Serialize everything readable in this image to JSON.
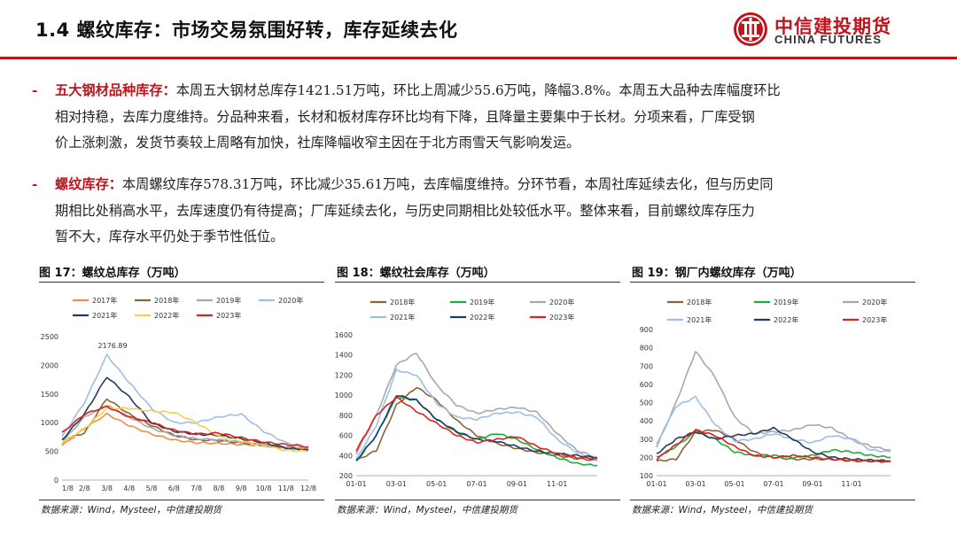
{
  "header": {
    "title": "1.4 螺纹库存：市场交易氛围好转，库存延续去化",
    "logo_cn": "中信建投期货",
    "logo_en": "CHINA FUTURES",
    "brand_color": "#c0141c"
  },
  "paragraphs": [
    {
      "bullet": "-",
      "keyword": "五大钢材品种库存：",
      "lines": [
        "本周五大钢材总库存1421.51万吨，环比上周减少55.6万吨，降幅3.8%。本周五大品种去库幅度环比",
        "相对持稳，去库力度维持。分品种来看，长材和板材库存环比均有下降，且降量主要集中于长材。分项来看，厂库受钢",
        "价上涨刺激，发货节奏较上周略有加快，社库降幅收窄主因在于北方雨雪天气影响发运。"
      ]
    },
    {
      "bullet": "-",
      "keyword": "螺纹库存：",
      "lines": [
        "本周螺纹库存578.31万吨，环比减少35.61万吨，去库幅度维持。分环节看，本周社库延续去化，但与历史同",
        "期相比处稍高水平，去库速度仍有待提高；厂库延续去化，与历史同期相比处较低水平。整体来看，目前螺纹库存压力",
        "暂不大，库存水平仍处于季节性低位。"
      ]
    }
  ],
  "figures": [
    {
      "title": "图 17：螺纹总库存（万吨）",
      "source": "数据来源：Wind，Mysteel，中信建投期货",
      "chart_data": {
        "type": "line",
        "title": "螺纹总库存（万吨）",
        "x_ticks": [
          "1/8",
          "2/8",
          "3/8",
          "4/8",
          "5/8",
          "6/8",
          "7/8",
          "8/8",
          "9/8",
          "10/8",
          "11/8",
          "12/8"
        ],
        "ylim": [
          0,
          2500
        ],
        "y_ticks": [
          "0",
          "500",
          "1000",
          "1500",
          "2000",
          "2500"
        ],
        "annotation": "2176.89",
        "series": [
          {
            "name": "2017年",
            "color": "#f08c4a",
            "values": [
              600,
              900,
              1150,
              950,
              800,
              700,
              650,
              640,
              620,
              600,
              560,
              520
            ]
          },
          {
            "name": "2018年",
            "color": "#8b6236",
            "values": [
              700,
              820,
              1420,
              1150,
              950,
              780,
              700,
              690,
              650,
              610,
              560,
              540
            ]
          },
          {
            "name": "2019年",
            "color": "#a8a8a8",
            "values": [
              650,
              1100,
              1300,
              1100,
              900,
              780,
              720,
              700,
              660,
              620,
              580,
              560
            ]
          },
          {
            "name": "2020年",
            "color": "#9dbfe6",
            "values": [
              750,
              1350,
              2176.89,
              1700,
              1250,
              1000,
              1000,
              1100,
              1150,
              850,
              650,
              580
            ]
          },
          {
            "name": "2021年",
            "color": "#1f3b66",
            "values": [
              700,
              1150,
              1800,
              1450,
              1000,
              850,
              800,
              780,
              720,
              650,
              560,
              520
            ]
          },
          {
            "name": "2022年",
            "color": "#f7d04a",
            "values": [
              650,
              900,
              1250,
              1250,
              1200,
              1180,
              1000,
              760,
              680,
              600,
              520,
              500
            ]
          },
          {
            "name": "2023年",
            "color": "#e0201c",
            "values": [
              820,
              1150,
              1280,
              1100,
              1000,
              870,
              800,
              820,
              740,
              660,
              620,
              578.31
            ]
          }
        ]
      }
    },
    {
      "title": "图 18：螺纹社会库存（万吨）",
      "source": "数据来源：Wind，Mysteel，中信建投期货",
      "chart_data": {
        "type": "line",
        "title": "螺纹社会库存（万吨）",
        "x_ticks": [
          "01-01",
          "03-01",
          "05-01",
          "07-01",
          "09-01",
          "11-01"
        ],
        "ylim": [
          200,
          1600
        ],
        "y_ticks": [
          "200",
          "400",
          "600",
          "800",
          "1000",
          "1200",
          "1400",
          "1600"
        ],
        "series": [
          {
            "name": "2018年",
            "color": "#8b6236",
            "values": [
              350,
              450,
              900,
              1080,
              950,
              750,
              600,
              520,
              470,
              430,
              400,
              370,
              350
            ]
          },
          {
            "name": "2019年",
            "color": "#1faa3c",
            "values": [
              340,
              600,
              980,
              950,
              760,
              630,
              560,
              620,
              560,
              460,
              380,
              320,
              300
            ]
          },
          {
            "name": "2020年",
            "color": "#a8a8a8",
            "values": [
              420,
              800,
              1300,
              1420,
              1100,
              900,
              820,
              860,
              880,
              830,
              620,
              450,
              380
            ]
          },
          {
            "name": "2021年",
            "color": "#9dbfe6",
            "values": [
              360,
              700,
              1250,
              1200,
              920,
              780,
              760,
              820,
              830,
              780,
              560,
              430,
              350
            ]
          },
          {
            "name": "2022年",
            "color": "#1f3b66",
            "values": [
              350,
              600,
              1000,
              950,
              760,
              640,
              560,
              540,
              490,
              440,
              420,
              400,
              380
            ]
          },
          {
            "name": "2023年",
            "color": "#e0201c",
            "values": [
              450,
              800,
              980,
              840,
              720,
              600,
              530,
              560,
              590,
              490,
              420,
              380,
              370
            ]
          }
        ]
      }
    },
    {
      "title": "图 19：钢厂内螺纹库存（万吨）",
      "source": "数据来源：Wind，Mysteel，中信建投期货",
      "chart_data": {
        "type": "line",
        "title": "钢厂内螺纹库存（万吨）",
        "x_ticks": [
          "01-01",
          "03-01",
          "05-01",
          "07-01",
          "09-01",
          "11-01"
        ],
        "ylim": [
          100,
          900
        ],
        "y_ticks": [
          "100",
          "200",
          "300",
          "400",
          "500",
          "600",
          "700",
          "800",
          "900"
        ],
        "series": [
          {
            "name": "2018年",
            "color": "#8b6236",
            "values": [
              180,
              190,
              340,
              350,
              300,
              230,
              200,
              190,
              190,
              190,
              180,
              180,
              175
            ]
          },
          {
            "name": "2019年",
            "color": "#1faa3c",
            "values": [
              200,
              260,
              340,
              300,
              230,
              210,
              210,
              200,
              210,
              240,
              230,
              210,
              200
            ]
          },
          {
            "name": "2020年",
            "color": "#a8a8a8",
            "values": [
              260,
              500,
              780,
              640,
              420,
              330,
              340,
              350,
              380,
              360,
              300,
              260,
              240
            ]
          },
          {
            "name": "2021年",
            "color": "#9dbfe6",
            "values": [
              270,
              480,
              530,
              380,
              290,
              300,
              330,
              300,
              280,
              320,
              300,
              240,
              230
            ]
          },
          {
            "name": "2022年",
            "color": "#1f3b66",
            "values": [
              220,
              300,
              340,
              300,
              320,
              330,
              360,
              300,
              230,
              200,
              190,
              185,
              180
            ]
          },
          {
            "name": "2023年",
            "color": "#e0201c",
            "values": [
              190,
              270,
              350,
              320,
              260,
              210,
              200,
              210,
              200,
              190,
              185,
              180,
              180
            ]
          }
        ]
      }
    }
  ]
}
